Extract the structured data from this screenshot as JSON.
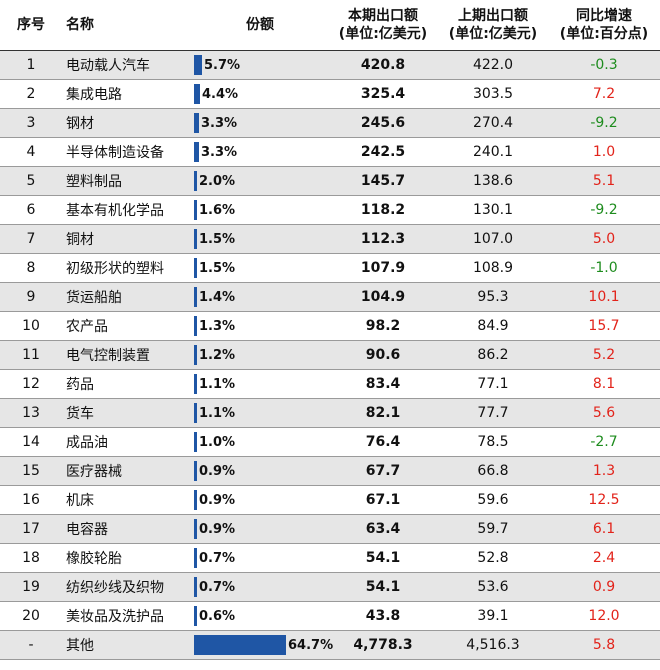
{
  "headers": {
    "idx": "序号",
    "name": "名称",
    "share": "份额",
    "current_l1": "本期出口额",
    "current_l2": "(单位:亿美元)",
    "previous_l1": "上期出口额",
    "previous_l2": "(单位:亿美元)",
    "yoy_l1": "同比增速",
    "yoy_l2": "(单位:百分点)"
  },
  "colors": {
    "bar": "#1f56a5",
    "positive": "#e2231a",
    "negative": "#1e8c1e"
  },
  "chart_data": {
    "type": "table",
    "columns": [
      "序号",
      "名称",
      "份额",
      "本期出口额 (单位:亿美元)",
      "上期出口额 (单位:亿美元)",
      "同比增速 (单位:百分点)"
    ],
    "rows": [
      {
        "idx": "1",
        "name": "电动载人汽车",
        "share": 5.7,
        "share_label": "5.7%",
        "current": "420.8",
        "previous": "422.0",
        "yoy": "-0.3"
      },
      {
        "idx": "2",
        "name": "集成电路",
        "share": 4.4,
        "share_label": "4.4%",
        "current": "325.4",
        "previous": "303.5",
        "yoy": "7.2"
      },
      {
        "idx": "3",
        "name": "钢材",
        "share": 3.3,
        "share_label": "3.3%",
        "current": "245.6",
        "previous": "270.4",
        "yoy": "-9.2"
      },
      {
        "idx": "4",
        "name": "半导体制造设备",
        "share": 3.3,
        "share_label": "3.3%",
        "current": "242.5",
        "previous": "240.1",
        "yoy": "1.0"
      },
      {
        "idx": "5",
        "name": "塑料制品",
        "share": 2.0,
        "share_label": "2.0%",
        "current": "145.7",
        "previous": "138.6",
        "yoy": "5.1"
      },
      {
        "idx": "6",
        "name": "基本有机化学品",
        "share": 1.6,
        "share_label": "1.6%",
        "current": "118.2",
        "previous": "130.1",
        "yoy": "-9.2"
      },
      {
        "idx": "7",
        "name": "铜材",
        "share": 1.5,
        "share_label": "1.5%",
        "current": "112.3",
        "previous": "107.0",
        "yoy": "5.0"
      },
      {
        "idx": "8",
        "name": "初级形状的塑料",
        "share": 1.5,
        "share_label": "1.5%",
        "current": "107.9",
        "previous": "108.9",
        "yoy": "-1.0"
      },
      {
        "idx": "9",
        "name": "货运船舶",
        "share": 1.4,
        "share_label": "1.4%",
        "current": "104.9",
        "previous": "95.3",
        "yoy": "10.1"
      },
      {
        "idx": "10",
        "name": "农产品",
        "share": 1.3,
        "share_label": "1.3%",
        "current": "98.2",
        "previous": "84.9",
        "yoy": "15.7"
      },
      {
        "idx": "11",
        "name": "电气控制装置",
        "share": 1.2,
        "share_label": "1.2%",
        "current": "90.6",
        "previous": "86.2",
        "yoy": "5.2"
      },
      {
        "idx": "12",
        "name": "药品",
        "share": 1.1,
        "share_label": "1.1%",
        "current": "83.4",
        "previous": "77.1",
        "yoy": "8.1"
      },
      {
        "idx": "13",
        "name": "货车",
        "share": 1.1,
        "share_label": "1.1%",
        "current": "82.1",
        "previous": "77.7",
        "yoy": "5.6"
      },
      {
        "idx": "14",
        "name": "成品油",
        "share": 1.0,
        "share_label": "1.0%",
        "current": "76.4",
        "previous": "78.5",
        "yoy": "-2.7"
      },
      {
        "idx": "15",
        "name": "医疗器械",
        "share": 0.9,
        "share_label": "0.9%",
        "current": "67.7",
        "previous": "66.8",
        "yoy": "1.3"
      },
      {
        "idx": "16",
        "name": "机床",
        "share": 0.9,
        "share_label": "0.9%",
        "current": "67.1",
        "previous": "59.6",
        "yoy": "12.5"
      },
      {
        "idx": "17",
        "name": "电容器",
        "share": 0.9,
        "share_label": "0.9%",
        "current": "63.4",
        "previous": "59.7",
        "yoy": "6.1"
      },
      {
        "idx": "18",
        "name": "橡胶轮胎",
        "share": 0.7,
        "share_label": "0.7%",
        "current": "54.1",
        "previous": "52.8",
        "yoy": "2.4"
      },
      {
        "idx": "19",
        "name": "纺织纱线及织物",
        "share": 0.7,
        "share_label": "0.7%",
        "current": "54.1",
        "previous": "53.6",
        "yoy": "0.9"
      },
      {
        "idx": "20",
        "name": "美妆品及洗护品",
        "share": 0.6,
        "share_label": "0.6%",
        "current": "43.8",
        "previous": "39.1",
        "yoy": "12.0"
      },
      {
        "idx": "-",
        "name": "其他",
        "share": 64.7,
        "share_label": "64.7%",
        "current": "4,778.3",
        "previous": "4,516.3",
        "yoy": "5.8"
      }
    ]
  }
}
